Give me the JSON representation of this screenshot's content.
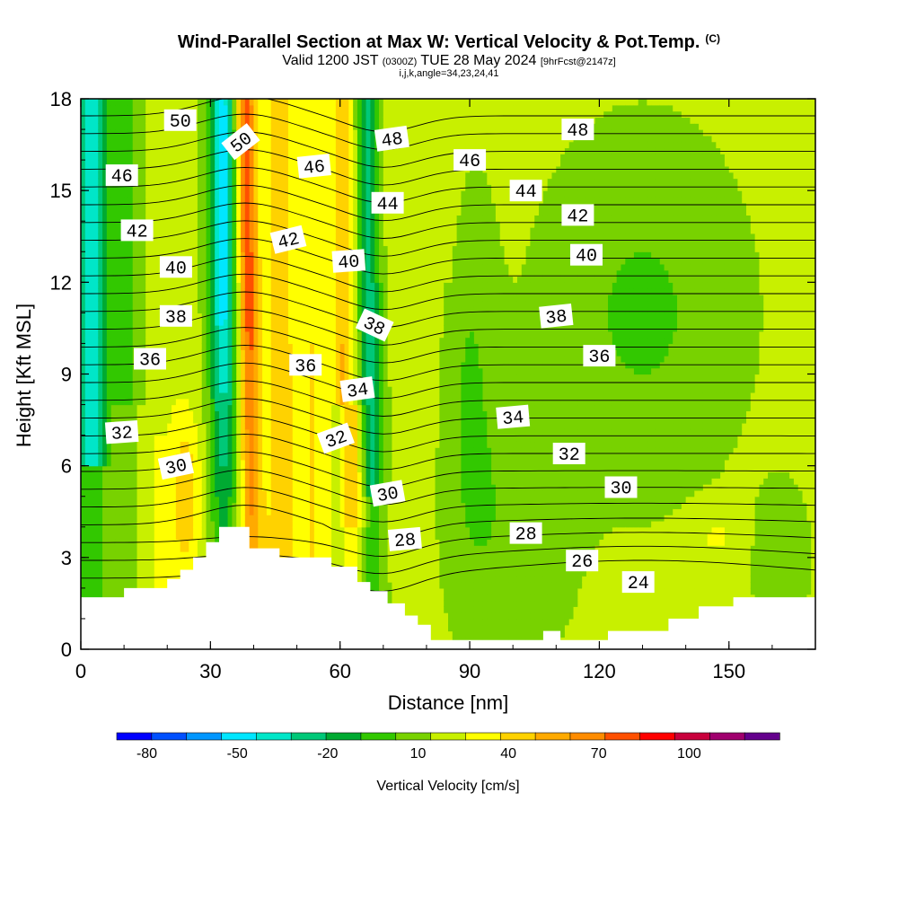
{
  "title": "Wind-Parallel Section at Max W: Vertical Velocity & Pot.Temp.",
  "title_mark": "(C)",
  "subtitle_valid": "Valid 1200 JST",
  "subtitle_utc": "(0300Z)",
  "subtitle_date": "TUE 28 May 2024",
  "subtitle_fcst": "[9hrFcst@2147z]",
  "params": "i,j,k,angle=34,23,24,41",
  "chart_data": {
    "type": "heatmap",
    "xlabel": "Distance [nm]",
    "ylabel": "Height [Kft MSL]",
    "xlim": [
      0,
      170
    ],
    "ylim": [
      0,
      18
    ],
    "x_ticks": [
      "0",
      "30",
      "60",
      "90",
      "120",
      "150"
    ],
    "y_ticks": [
      "0",
      "3",
      "6",
      "9",
      "12",
      "15",
      "18"
    ],
    "colorbar": {
      "label": "Vertical Velocity [cm/s]",
      "tick_labels": [
        "-80",
        "-50",
        "-20",
        "10",
        "40",
        "70",
        "100"
      ],
      "tick_values": [
        -80,
        -50,
        -20,
        10,
        40,
        70,
        100
      ],
      "range": [
        -90,
        130
      ],
      "step": 10,
      "colors": [
        "#0000ff",
        "#0050ff",
        "#0096ff",
        "#00e6ff",
        "#00e6c8",
        "#00c878",
        "#00aa32",
        "#32c800",
        "#78d200",
        "#c8f000",
        "#ffff00",
        "#ffd200",
        "#ffaa00",
        "#ff8c00",
        "#ff5000",
        "#ff0000",
        "#c8003c",
        "#a0006e",
        "#64008c"
      ]
    },
    "terrain": [
      [
        0,
        1.7
      ],
      [
        10,
        1.7
      ],
      [
        10,
        2.0
      ],
      [
        20,
        2.0
      ],
      [
        20,
        2.3
      ],
      [
        23,
        2.3
      ],
      [
        23,
        2.6
      ],
      [
        26,
        2.6
      ],
      [
        26,
        3.0
      ],
      [
        29,
        3.0
      ],
      [
        29,
        3.5
      ],
      [
        32,
        3.5
      ],
      [
        32,
        4.0
      ],
      [
        39,
        4.0
      ],
      [
        39,
        3.3
      ],
      [
        46,
        3.3
      ],
      [
        46,
        3.0
      ],
      [
        58,
        3.0
      ],
      [
        58,
        2.7
      ],
      [
        64,
        2.7
      ],
      [
        64,
        2.2
      ],
      [
        67,
        2.2
      ],
      [
        67,
        1.9
      ],
      [
        71,
        1.9
      ],
      [
        71,
        1.5
      ],
      [
        75,
        1.5
      ],
      [
        75,
        1.1
      ],
      [
        78,
        1.1
      ],
      [
        78,
        0.8
      ],
      [
        81,
        0.8
      ],
      [
        81,
        0.3
      ],
      [
        107,
        0.3
      ],
      [
        107,
        0.6
      ],
      [
        111,
        0.6
      ],
      [
        111,
        0.3
      ],
      [
        122,
        0.3
      ],
      [
        122,
        0.6
      ],
      [
        136,
        0.6
      ],
      [
        136,
        1.0
      ],
      [
        143,
        1.0
      ],
      [
        143,
        1.4
      ],
      [
        151,
        1.4
      ],
      [
        151,
        1.7
      ],
      [
        170,
        1.7
      ]
    ],
    "theta_contour_labels": [
      {
        "text": "50",
        "x": 23,
        "y": 17.3,
        "rot": 0
      },
      {
        "text": "50",
        "x": 37,
        "y": 16.6,
        "rot": -38
      },
      {
        "text": "48",
        "x": 72,
        "y": 16.7,
        "rot": -8
      },
      {
        "text": "48",
        "x": 115,
        "y": 17.0,
        "rot": 0
      },
      {
        "text": "46",
        "x": 9.5,
        "y": 15.5,
        "rot": 0
      },
      {
        "text": "46",
        "x": 54,
        "y": 15.8,
        "rot": -6
      },
      {
        "text": "46",
        "x": 90,
        "y": 16.0,
        "rot": 0
      },
      {
        "text": "44",
        "x": 71,
        "y": 14.6,
        "rot": 0
      },
      {
        "text": "44",
        "x": 103,
        "y": 15.0,
        "rot": 0
      },
      {
        "text": "42",
        "x": 13,
        "y": 13.7,
        "rot": 0
      },
      {
        "text": "42",
        "x": 48,
        "y": 13.4,
        "rot": -14
      },
      {
        "text": "42",
        "x": 115,
        "y": 14.2,
        "rot": 0
      },
      {
        "text": "40",
        "x": 22,
        "y": 12.5,
        "rot": 0
      },
      {
        "text": "40",
        "x": 62,
        "y": 12.7,
        "rot": -4
      },
      {
        "text": "40",
        "x": 117,
        "y": 12.9,
        "rot": 0
      },
      {
        "text": "38",
        "x": 22,
        "y": 10.9,
        "rot": 0
      },
      {
        "text": "38",
        "x": 68,
        "y": 10.6,
        "rot": 25
      },
      {
        "text": "38",
        "x": 110,
        "y": 10.9,
        "rot": -6
      },
      {
        "text": "36",
        "x": 16,
        "y": 9.5,
        "rot": 0
      },
      {
        "text": "36",
        "x": 52,
        "y": 9.3,
        "rot": 0
      },
      {
        "text": "36",
        "x": 120,
        "y": 9.6,
        "rot": 0
      },
      {
        "text": "34",
        "x": 64,
        "y": 8.5,
        "rot": -8
      },
      {
        "text": "34",
        "x": 100,
        "y": 7.6,
        "rot": -5
      },
      {
        "text": "32",
        "x": 9.5,
        "y": 7.1,
        "rot": -4
      },
      {
        "text": "32",
        "x": 59,
        "y": 6.9,
        "rot": -20
      },
      {
        "text": "32",
        "x": 113,
        "y": 6.4,
        "rot": 0
      },
      {
        "text": "30",
        "x": 22,
        "y": 6.0,
        "rot": -12
      },
      {
        "text": "30",
        "x": 71,
        "y": 5.1,
        "rot": -10
      },
      {
        "text": "30",
        "x": 125,
        "y": 5.3,
        "rot": 0
      },
      {
        "text": "28",
        "x": 75,
        "y": 3.6,
        "rot": -5
      },
      {
        "text": "28",
        "x": 103,
        "y": 3.8,
        "rot": 0
      },
      {
        "text": "26",
        "x": 116,
        "y": 2.9,
        "rot": 0
      },
      {
        "text": "24",
        "x": 129,
        "y": 2.2,
        "rot": 0
      }
    ],
    "grid": false
  }
}
